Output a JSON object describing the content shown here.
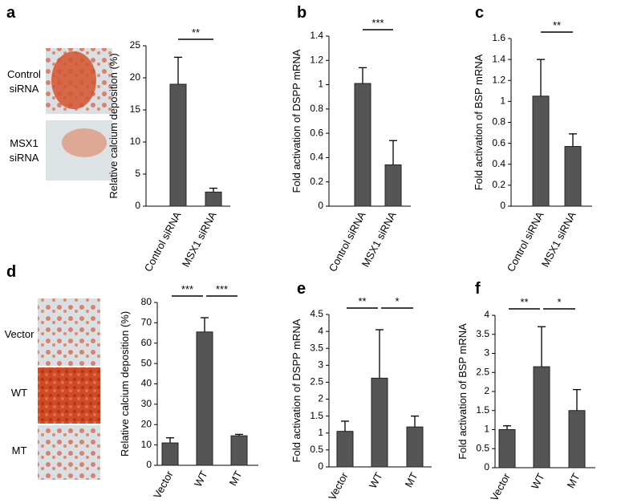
{
  "chart_data": [
    {
      "type": "bar",
      "panel": "a",
      "ylabel": "Relative calcium deposition (%)",
      "image_labels": [
        "Control siRNA",
        "MSX1 siRNA"
      ],
      "categories": [
        "Control siRNA",
        "MSX1 siRNA"
      ],
      "values": [
        19,
        2.2
      ],
      "errors": [
        4.2,
        0.6
      ],
      "color": "#555555",
      "ylim": [
        0,
        25
      ],
      "yticks": [
        0,
        5,
        10,
        15,
        20,
        25
      ],
      "brackets": [
        "**"
      ]
    },
    {
      "type": "bar",
      "panel": "b",
      "ylabel": "Fold activation of DSPP mRNA",
      "categories": [
        "Control siRNA",
        "MSX1 siRNA"
      ],
      "values": [
        1.01,
        0.34
      ],
      "errors": [
        0.13,
        0.2
      ],
      "color": "#555555",
      "ylim": [
        0,
        1.4
      ],
      "yticks": [
        0,
        0.2,
        0.4,
        0.6,
        0.8,
        1,
        1.2,
        1.4
      ],
      "brackets": [
        "***"
      ]
    },
    {
      "type": "bar",
      "panel": "c",
      "ylabel": "Fold activation of BSP mRNA",
      "categories": [
        "Control siRNA",
        "MSX1 siRNA"
      ],
      "values": [
        1.05,
        0.57
      ],
      "errors": [
        0.35,
        0.12
      ],
      "color": "#555555",
      "ylim": [
        0,
        1.6
      ],
      "yticks": [
        0,
        0.2,
        0.4,
        0.6,
        0.8,
        1,
        1.2,
        1.4,
        1.6
      ],
      "brackets": [
        "**"
      ]
    },
    {
      "type": "bar",
      "panel": "d",
      "ylabel": "Relative calcium deposition (%)",
      "image_labels": [
        "Vector",
        "WT",
        "MT"
      ],
      "categories": [
        "Vector",
        "WT",
        "MT"
      ],
      "values": [
        11,
        65.5,
        14.5
      ],
      "errors": [
        2.5,
        7,
        0.7
      ],
      "color": "#555555",
      "ylim": [
        0,
        80
      ],
      "yticks": [
        0,
        10,
        20,
        30,
        40,
        50,
        60,
        70,
        80
      ],
      "brackets": [
        "***",
        "***"
      ]
    },
    {
      "type": "bar",
      "panel": "e",
      "ylabel": "Fold activation of DSPP mRNA",
      "categories": [
        "Vector",
        "WT",
        "MT"
      ],
      "values": [
        1.05,
        2.62,
        1.18
      ],
      "errors": [
        0.3,
        1.43,
        0.32
      ],
      "color": "#555555",
      "ylim": [
        0,
        4.5
      ],
      "yticks": [
        0,
        0.5,
        1,
        1.5,
        2,
        2.5,
        3,
        3.5,
        4,
        4.5
      ],
      "brackets": [
        "**",
        "*"
      ]
    },
    {
      "type": "bar",
      "panel": "f",
      "ylabel": "Fold activation of BSP mRNA",
      "categories": [
        "Vector",
        "WT",
        "MT"
      ],
      "values": [
        1.0,
        2.65,
        1.5
      ],
      "errors": [
        0.1,
        1.05,
        0.55
      ],
      "color": "#555555",
      "ylim": [
        0,
        4
      ],
      "yticks": [
        0,
        0.5,
        1,
        1.5,
        2,
        2.5,
        3,
        3.5,
        4
      ],
      "brackets": [
        "**",
        "*"
      ]
    }
  ]
}
